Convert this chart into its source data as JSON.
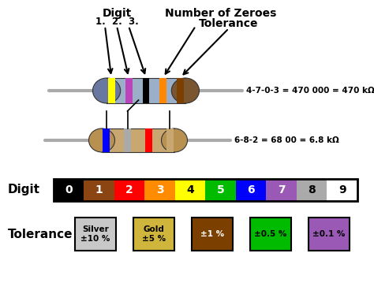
{
  "bg_color": "#ffffff",
  "digit_colors": [
    "#000000",
    "#8B4513",
    "#FF0000",
    "#FF8C00",
    "#FFFF00",
    "#00BB00",
    "#0000FF",
    "#9B59B6",
    "#AAAAAA",
    "#FFFFFF"
  ],
  "digit_text_colors": [
    "#FFFFFF",
    "#FFFFFF",
    "#FFFFFF",
    "#FFFFFF",
    "#000000",
    "#FFFFFF",
    "#FFFFFF",
    "#FFFFFF",
    "#000000",
    "#000000"
  ],
  "digit_labels": [
    "0",
    "1",
    "2",
    "3",
    "4",
    "5",
    "6",
    "7",
    "8",
    "9"
  ],
  "tolerance_colors": [
    "#C8C8C8",
    "#CFB53B",
    "#7B3F00",
    "#00BB00",
    "#9B59B6"
  ],
  "tolerance_labels": [
    "Silver\n±10 %",
    "Gold\n±5 %",
    "±1 %",
    "±0.5 %",
    "±0.1 %"
  ],
  "tolerance_text_colors": [
    "#000000",
    "#000000",
    "#FFFFFF",
    "#000000",
    "#000000"
  ],
  "resistor1_body_color": "#9BAFC8",
  "resistor1_cap_left_color": "#6878A0",
  "resistor1_cap_right_color": "#7B5530",
  "resistor1_bands": [
    "#FFFF00",
    "#BB44BB",
    "#000000",
    "#FF8800",
    "#7B3F00"
  ],
  "resistor2_body_color": "#C8A870",
  "resistor2_cap_color": "#B89050",
  "resistor2_bands": [
    "#0000FF",
    "#AAAAAA",
    "#FF0000",
    "#C8A870"
  ],
  "wire_color": "#AAAAAA",
  "wire_lw": 3,
  "label1": "4-7-0-3 = 470 000 = 470 kΩ",
  "label2": "6-8-2 = 68 00 = 6.8 kΩ",
  "digit_label": "Digit",
  "tolerance_label": "Tolerance",
  "top_digit_label": "Digit",
  "top_number_zeroes": "Number of Zeroes",
  "top_tolerance": "Tolerance",
  "top_nums": "1.  2.  3."
}
